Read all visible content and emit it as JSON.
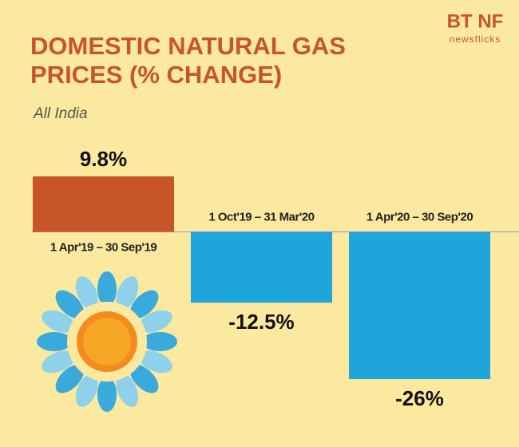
{
  "chart_data": {
    "type": "bar",
    "title": "DOMESTIC NATURAL GAS PRICES (% CHANGE)",
    "subtitle": "All India",
    "brand": "BT NF",
    "brand_tagline": "newsflicks",
    "categories": [
      "1 Apr'19 – 30 Sep'19",
      "1 Oct'19 – 31 Mar'20",
      "1 Apr'20 – 30 Sep'20"
    ],
    "values": [
      9.8,
      -12.5,
      -26
    ],
    "value_labels": [
      "9.8%",
      "-12.5%",
      "-26%"
    ],
    "colors": [
      "#c8552a",
      "#1ea5dc",
      "#1ea5dc"
    ]
  }
}
